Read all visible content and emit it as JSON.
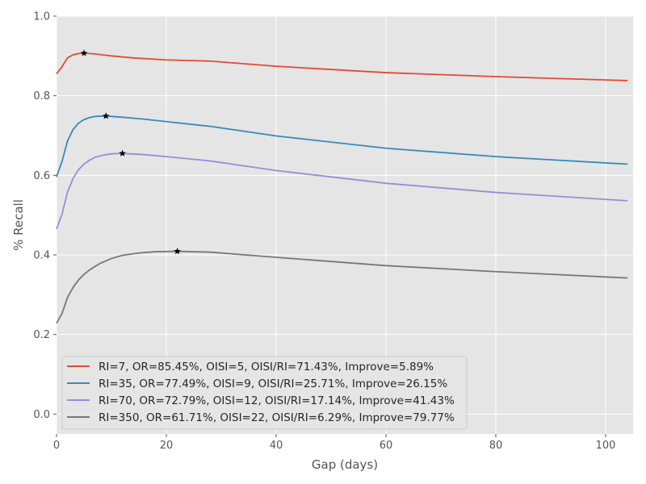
{
  "chart_data": {
    "type": "line",
    "title": "",
    "xlabel": "Gap (days)",
    "ylabel": "% Recall",
    "xlim": [
      0,
      105
    ],
    "ylim": [
      -0.05,
      1.0
    ],
    "xticks": [
      0,
      20,
      40,
      60,
      80,
      100
    ],
    "yticks": [
      0.0,
      0.2,
      0.4,
      0.6,
      0.8,
      1.0
    ],
    "xtick_labels": [
      "0",
      "20",
      "40",
      "60",
      "80",
      "100"
    ],
    "ytick_labels": [
      "0.0",
      "0.2",
      "0.4",
      "0.6",
      "0.8",
      "1.0"
    ],
    "grid": true,
    "legend_position": "lower-left",
    "colors": {
      "plot_background": "#e5e5e5",
      "grid": "#ffffff",
      "marker": "#000000"
    },
    "series": [
      {
        "name": "RI=7, OR=85.45%, OISI=5, OISI/RI=71.43%, Improve=5.89%",
        "color": "#e24a33",
        "x": [
          0,
          1,
          2,
          3,
          4,
          5,
          7,
          10,
          14,
          20,
          28,
          40,
          60,
          80,
          104
        ],
        "y": [
          0.855,
          0.873,
          0.895,
          0.903,
          0.906,
          0.907,
          0.905,
          0.9,
          0.895,
          0.89,
          0.887,
          0.874,
          0.858,
          0.848,
          0.838
        ],
        "optimum": {
          "x": 5,
          "y": 0.907
        }
      },
      {
        "name": "RI=35, OR=77.49%, OISI=9, OISI/RI=25.71%, Improve=26.15%",
        "color": "#348abd",
        "x": [
          0,
          1,
          2,
          3,
          4,
          5,
          6,
          7,
          9,
          12,
          16,
          20,
          28,
          40,
          60,
          80,
          104
        ],
        "y": [
          0.596,
          0.635,
          0.686,
          0.715,
          0.731,
          0.74,
          0.745,
          0.748,
          0.749,
          0.746,
          0.741,
          0.735,
          0.723,
          0.699,
          0.668,
          0.647,
          0.628
        ],
        "optimum": {
          "x": 9,
          "y": 0.749
        }
      },
      {
        "name": "RI=70, OR=72.79%, OISI=12, OISI/RI=17.14%, Improve=41.43%",
        "color": "#988ed5",
        "x": [
          0,
          1,
          2,
          3,
          4,
          5,
          6,
          7,
          8,
          9,
          10,
          12,
          16,
          20,
          28,
          40,
          60,
          80,
          104
        ],
        "y": [
          0.465,
          0.502,
          0.558,
          0.592,
          0.614,
          0.628,
          0.638,
          0.645,
          0.649,
          0.652,
          0.654,
          0.655,
          0.652,
          0.647,
          0.636,
          0.612,
          0.58,
          0.557,
          0.536
        ],
        "optimum": {
          "x": 12,
          "y": 0.655
        }
      },
      {
        "name": "RI=350, OR=61.71%, OISI=22, OISI/RI=6.29%, Improve=79.77%",
        "color": "#777777",
        "x": [
          0,
          1,
          2,
          3,
          4,
          5,
          6,
          7,
          8,
          10,
          12,
          14,
          16,
          18,
          22,
          28,
          40,
          60,
          80,
          104
        ],
        "y": [
          0.228,
          0.253,
          0.293,
          0.318,
          0.337,
          0.351,
          0.362,
          0.371,
          0.379,
          0.391,
          0.399,
          0.403,
          0.406,
          0.408,
          0.409,
          0.407,
          0.394,
          0.373,
          0.358,
          0.342
        ],
        "optimum": {
          "x": 22,
          "y": 0.409
        }
      }
    ]
  }
}
